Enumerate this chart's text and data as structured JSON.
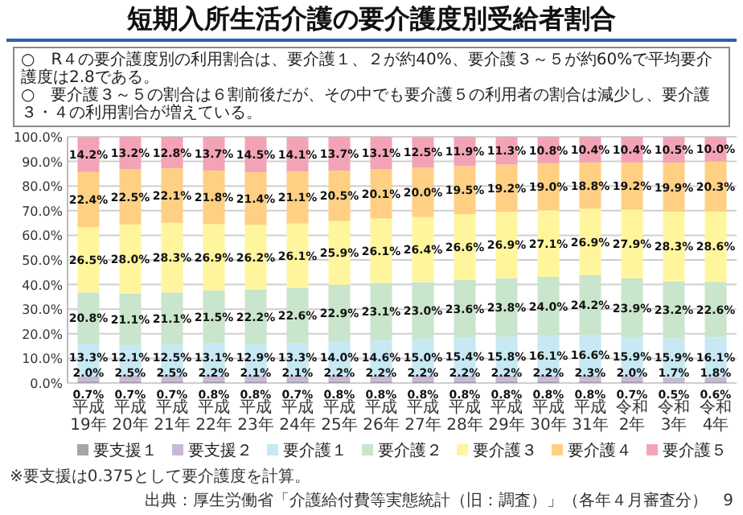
{
  "chart_data": {
    "type": "bar",
    "stacked": true,
    "title": "短期入所生活介護の要介護度別受給者割合",
    "subtitle": "○　R４の要介護度別の利用割合は、要介護１、２が約40%、要介護３～５が約60%で平均要介護度は2.8である。\n○　要介護３～５の割合は６割前後だが、その中でも要介護５の利用者の割合は減少し、要介護３・４の利用割合が増えている。",
    "categories": [
      "平成19年",
      "平成20年",
      "平成21年",
      "平成22年",
      "平成23年",
      "平成24年",
      "平成25年",
      "平成26年",
      "平成27年",
      "平成28年",
      "平成29年",
      "平成30年",
      "平成31年",
      "令和2年",
      "令和3年",
      "令和4年"
    ],
    "series": [
      {
        "name": "要支援１",
        "color": "#a6a6a6",
        "values": [
          0.7,
          0.7,
          0.7,
          0.8,
          0.8,
          0.7,
          0.8,
          0.8,
          0.8,
          0.8,
          0.8,
          0.8,
          0.8,
          0.7,
          0.5,
          0.6
        ],
        "value_labels": [
          "0.7%",
          "0.7%",
          "0.7%",
          "0.8%",
          "0.8%",
          "0.7%",
          "0.8%",
          "0.8%",
          "0.8%",
          "0.8%",
          "0.8%",
          "0.8%",
          "0.8%",
          "0.7%",
          "0.5%",
          "0.6%"
        ]
      },
      {
        "name": "要支援２",
        "color": "#c8b8d8",
        "values": [
          2.0,
          2.5,
          2.5,
          2.2,
          2.1,
          2.1,
          2.2,
          2.2,
          2.2,
          2.2,
          2.2,
          2.2,
          2.3,
          2.0,
          1.7,
          1.8
        ],
        "value_labels": [
          "2.0%",
          "2.5%",
          "2.5%",
          "2.2%",
          "2.1%",
          "2.1%",
          "2.2%",
          "2.2%",
          "2.2%",
          "2.2%",
          "2.2%",
          "2.2%",
          "2.3%",
          "2.0%",
          "1.7%",
          "1.8%"
        ]
      },
      {
        "name": "要介護１",
        "color": "#c6e9f3",
        "values": [
          13.3,
          12.1,
          12.5,
          13.1,
          12.9,
          13.3,
          14.0,
          14.6,
          15.0,
          15.4,
          15.8,
          16.1,
          16.6,
          15.9,
          15.9,
          16.1
        ],
        "value_labels": [
          "13.3%",
          "12.1%",
          "12.5%",
          "13.1%",
          "12.9%",
          "13.3%",
          "14.0%",
          "14.6%",
          "15.0%",
          "15.4%",
          "15.8%",
          "16.1%",
          "16.6%",
          "15.9%",
          "15.9%",
          "16.1%"
        ]
      },
      {
        "name": "要介護２",
        "color": "#c9e5cb",
        "values": [
          20.8,
          21.1,
          21.1,
          21.5,
          22.2,
          22.6,
          22.9,
          23.1,
          23.0,
          23.6,
          23.8,
          24.0,
          24.2,
          23.9,
          23.2,
          22.6
        ],
        "value_labels": [
          "20.8%",
          "21.1%",
          "21.1%",
          "21.5%",
          "22.2%",
          "22.6%",
          "22.9%",
          "23.1%",
          "23.0%",
          "23.6%",
          "23.8%",
          "24.0%",
          "24.2%",
          "23.9%",
          "23.2%",
          "22.6%"
        ]
      },
      {
        "name": "要介護３",
        "color": "#fff59d",
        "values": [
          26.5,
          28.0,
          28.3,
          26.9,
          26.2,
          26.1,
          25.9,
          26.1,
          26.4,
          26.6,
          26.9,
          27.1,
          26.9,
          27.9,
          28.3,
          28.6
        ],
        "value_labels": [
          "26.5%",
          "28.0%",
          "28.3%",
          "26.9%",
          "26.2%",
          "26.1%",
          "25.9%",
          "26.1%",
          "26.4%",
          "26.6%",
          "26.9%",
          "27.1%",
          "26.9%",
          "27.9%",
          "28.3%",
          "28.6%"
        ]
      },
      {
        "name": "要介護４",
        "color": "#ffd083",
        "values": [
          22.4,
          22.5,
          22.1,
          21.8,
          21.4,
          21.1,
          20.5,
          20.1,
          20.0,
          19.5,
          19.2,
          19.0,
          18.8,
          19.2,
          19.9,
          20.3
        ],
        "value_labels": [
          "22.4%",
          "22.5%",
          "22.1%",
          "21.8%",
          "21.4%",
          "21.1%",
          "20.5%",
          "20.1%",
          "20.0%",
          "19.5%",
          "19.2%",
          "19.0%",
          "18.8%",
          "19.2%",
          "19.9%",
          "20.3%"
        ]
      },
      {
        "name": "要介護５",
        "color": "#f4a3b6",
        "values": [
          14.2,
          13.2,
          12.8,
          13.7,
          14.5,
          14.1,
          13.7,
          13.1,
          12.5,
          11.9,
          11.3,
          10.8,
          10.4,
          10.4,
          10.5,
          10.0
        ],
        "value_labels": [
          "14.2%",
          "13.2%",
          "12.8%",
          "13.7%",
          "14.5%",
          "14.1%",
          "13.7%",
          "13.1%",
          "12.5%",
          "11.9%",
          "11.3%",
          "10.8%",
          "10.4%",
          "10.4%",
          "10.5%",
          "10.0%"
        ]
      }
    ],
    "ylim": [
      0,
      100
    ],
    "yticks": [
      {
        "value": 0,
        "label": "0.0%"
      },
      {
        "value": 10,
        "label": "10.0%"
      },
      {
        "value": 20,
        "label": "20.0%"
      },
      {
        "value": 30,
        "label": "30.0%"
      },
      {
        "value": 40,
        "label": "40.0%"
      },
      {
        "value": 50,
        "label": "50.0%"
      },
      {
        "value": 60,
        "label": "60.0%"
      },
      {
        "value": 70,
        "label": "70.0%"
      },
      {
        "value": 80,
        "label": "80.0%"
      },
      {
        "value": 90,
        "label": "90.0%"
      },
      {
        "value": 100,
        "label": "100.0%"
      }
    ],
    "grid": "y",
    "legend": "bottom",
    "annotations": [
      "※要支援は0.375として要介護度を計算。",
      "出典：厚生労働省「介護給付費等実態統計（旧：調査）」（各年４月審査分）",
      "9"
    ]
  }
}
